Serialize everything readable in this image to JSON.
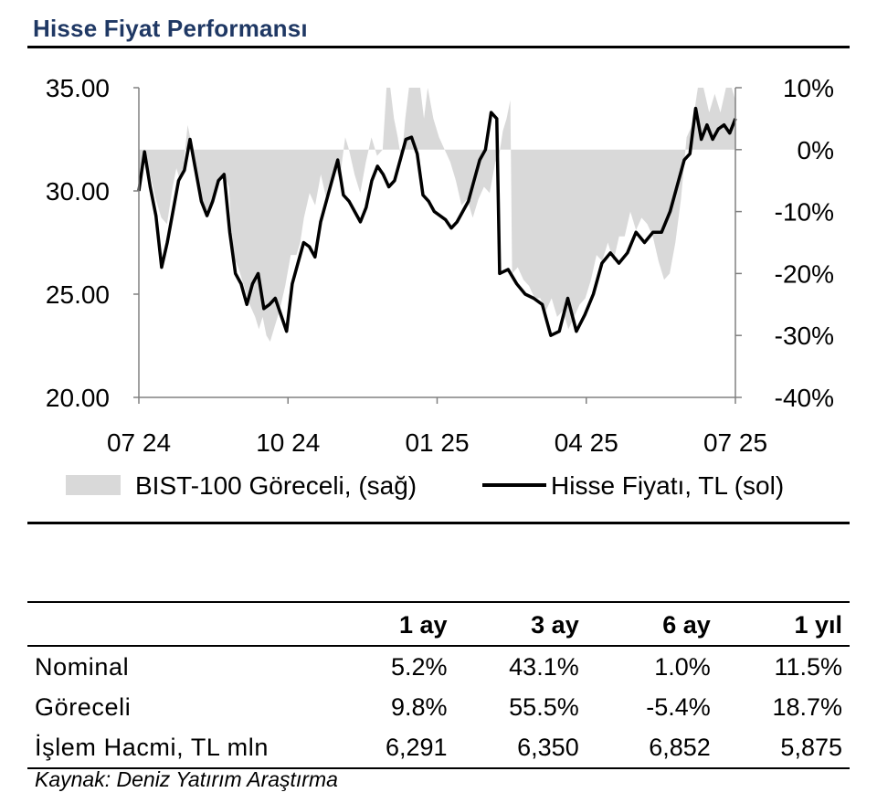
{
  "header": {
    "title": "Hisse Fiyat Performansı"
  },
  "chart_data": {
    "type": "line",
    "title": "Hisse Fiyat Performansı",
    "x_ticks": [
      "07 24",
      "10 24",
      "01 25",
      "04 25",
      "07 25"
    ],
    "y_left": {
      "ticks": [
        "35.00",
        "30.00",
        "25.00",
        "20.00"
      ],
      "range": [
        20,
        35
      ]
    },
    "y_right": {
      "ticks": [
        "10%",
        "0%",
        "-10%",
        "-20%",
        "-30%",
        "-40%"
      ],
      "range": [
        -40,
        10
      ]
    },
    "grid": false,
    "legend_position": "bottom",
    "series": [
      {
        "name": "BIST-100 Göreceli, (sağ)",
        "type": "area",
        "axis": "right",
        "color": "#d9d9d9",
        "points": [
          [
            0,
            -5
          ],
          [
            3,
            -1
          ],
          [
            6,
            -4
          ],
          [
            9,
            -8
          ],
          [
            12,
            -11
          ],
          [
            15,
            -12
          ],
          [
            18,
            -6
          ],
          [
            20,
            -3
          ],
          [
            22,
            -5
          ],
          [
            24,
            -2
          ],
          [
            26,
            4
          ],
          [
            28,
            1
          ],
          [
            30,
            -4
          ],
          [
            33,
            -8
          ],
          [
            36,
            -10
          ],
          [
            39,
            -8
          ],
          [
            42,
            -6
          ],
          [
            45,
            -4
          ],
          [
            48,
            -6
          ],
          [
            50,
            -17
          ],
          [
            53,
            -19
          ],
          [
            56,
            -22
          ],
          [
            59,
            -25
          ],
          [
            62,
            -27
          ],
          [
            64,
            -29
          ],
          [
            66,
            -27
          ],
          [
            68,
            -30
          ],
          [
            70,
            -31
          ],
          [
            72,
            -29
          ],
          [
            75,
            -26
          ],
          [
            78,
            -22
          ],
          [
            81,
            -17
          ],
          [
            84,
            -17
          ],
          [
            86,
            -15
          ],
          [
            88,
            -11
          ],
          [
            91,
            -7
          ],
          [
            94,
            -9
          ],
          [
            97,
            -4
          ],
          [
            100,
            -8
          ],
          [
            103,
            -5
          ],
          [
            105,
            -3
          ],
          [
            107,
            -5
          ],
          [
            110,
            2
          ],
          [
            112,
            0
          ],
          [
            115,
            -4
          ],
          [
            118,
            -7
          ],
          [
            121,
            -2
          ],
          [
            124,
            2
          ],
          [
            127,
            -1
          ],
          [
            130,
            0
          ],
          [
            132,
            10
          ],
          [
            134,
            10
          ],
          [
            136,
            5
          ],
          [
            138,
            2
          ],
          [
            140,
            -2
          ],
          [
            142,
            5
          ],
          [
            144,
            10
          ],
          [
            147,
            10
          ],
          [
            150,
            10
          ],
          [
            152,
            5
          ],
          [
            154,
            10
          ],
          [
            157,
            5
          ],
          [
            160,
            2
          ],
          [
            163,
            0
          ],
          [
            166,
            -2
          ],
          [
            169,
            -5
          ],
          [
            172,
            -9
          ],
          [
            175,
            -8
          ],
          [
            178,
            -11
          ],
          [
            181,
            -8
          ],
          [
            184,
            -6
          ],
          [
            187,
            -7
          ],
          [
            190,
            -2
          ],
          [
            192,
            -1
          ],
          [
            194,
            3
          ],
          [
            196,
            5
          ],
          [
            198,
            8
          ],
          [
            199,
            -20
          ],
          [
            202,
            -19
          ],
          [
            205,
            -21
          ],
          [
            208,
            -22
          ],
          [
            211,
            -24
          ],
          [
            214,
            -24
          ],
          [
            217,
            -26
          ],
          [
            220,
            -24
          ],
          [
            223,
            -27
          ],
          [
            226,
            -26
          ],
          [
            229,
            -29
          ],
          [
            232,
            -27
          ],
          [
            235,
            -25
          ],
          [
            238,
            -24
          ],
          [
            241,
            -21
          ],
          [
            244,
            -17
          ],
          [
            247,
            -18
          ],
          [
            250,
            -15
          ],
          [
            253,
            -18
          ],
          [
            256,
            -14
          ],
          [
            259,
            -14
          ],
          [
            262,
            -10
          ],
          [
            265,
            -13
          ],
          [
            268,
            -11
          ],
          [
            271,
            -12
          ],
          [
            274,
            -14
          ],
          [
            277,
            -18
          ],
          [
            280,
            -21
          ],
          [
            283,
            -20
          ],
          [
            286,
            -15
          ],
          [
            289,
            -8
          ],
          [
            292,
            2
          ],
          [
            295,
            4
          ],
          [
            298,
            10
          ],
          [
            301,
            10
          ],
          [
            304,
            6
          ],
          [
            307,
            9
          ],
          [
            310,
            6
          ],
          [
            313,
            10
          ],
          [
            316,
            10
          ],
          [
            318,
            8
          ]
        ]
      },
      {
        "name": "Hisse Fiyatı, TL (sol)",
        "type": "line",
        "axis": "left",
        "color": "#000000",
        "points": [
          [
            0,
            30.0
          ],
          [
            2,
            31.9
          ],
          [
            4,
            30.2
          ],
          [
            6,
            28.8
          ],
          [
            8,
            26.3
          ],
          [
            10,
            27.5
          ],
          [
            12,
            29.0
          ],
          [
            14,
            30.5
          ],
          [
            16,
            31.0
          ],
          [
            18,
            32.5
          ],
          [
            20,
            31.0
          ],
          [
            22,
            29.5
          ],
          [
            24,
            28.8
          ],
          [
            26,
            29.5
          ],
          [
            28,
            30.5
          ],
          [
            30,
            30.8
          ],
          [
            32,
            28.0
          ],
          [
            34,
            26.0
          ],
          [
            36,
            25.5
          ],
          [
            38,
            24.5
          ],
          [
            40,
            25.5
          ],
          [
            42,
            26.0
          ],
          [
            44,
            24.3
          ],
          [
            46,
            24.5
          ],
          [
            48,
            24.8
          ],
          [
            50,
            24.0
          ],
          [
            52,
            23.2
          ],
          [
            54,
            25.5
          ],
          [
            56,
            26.5
          ],
          [
            58,
            27.5
          ],
          [
            60,
            27.3
          ],
          [
            62,
            26.8
          ],
          [
            64,
            28.5
          ],
          [
            66,
            29.5
          ],
          [
            68,
            30.5
          ],
          [
            70,
            31.5
          ],
          [
            72,
            29.8
          ],
          [
            74,
            29.5
          ],
          [
            76,
            29.0
          ],
          [
            78,
            28.5
          ],
          [
            80,
            29.2
          ],
          [
            82,
            30.5
          ],
          [
            84,
            31.2
          ],
          [
            86,
            30.8
          ],
          [
            88,
            30.2
          ],
          [
            90,
            30.5
          ],
          [
            92,
            31.5
          ],
          [
            94,
            32.5
          ],
          [
            96,
            32.6
          ],
          [
            98,
            31.8
          ],
          [
            100,
            29.8
          ],
          [
            102,
            29.5
          ],
          [
            104,
            29.0
          ],
          [
            106,
            28.8
          ],
          [
            108,
            28.6
          ],
          [
            110,
            28.2
          ],
          [
            112,
            28.5
          ],
          [
            114,
            29.0
          ],
          [
            116,
            29.5
          ],
          [
            118,
            30.5
          ],
          [
            120,
            31.5
          ],
          [
            122,
            32.0
          ],
          [
            124,
            33.8
          ],
          [
            126,
            33.5
          ],
          [
            127,
            26.0
          ],
          [
            130,
            26.2
          ],
          [
            133,
            25.5
          ],
          [
            136,
            25.0
          ],
          [
            139,
            24.8
          ],
          [
            142,
            24.5
          ],
          [
            145,
            23.0
          ],
          [
            148,
            23.2
          ],
          [
            151,
            24.8
          ],
          [
            154,
            23.2
          ],
          [
            157,
            24.0
          ],
          [
            160,
            25.0
          ],
          [
            163,
            26.5
          ],
          [
            166,
            27.0
          ],
          [
            169,
            26.5
          ],
          [
            172,
            27.0
          ],
          [
            175,
            28.0
          ],
          [
            178,
            27.5
          ],
          [
            181,
            28.0
          ],
          [
            184,
            28.0
          ],
          [
            187,
            29.0
          ],
          [
            190,
            30.5
          ],
          [
            192,
            31.5
          ],
          [
            194,
            31.8
          ],
          [
            196,
            34.0
          ],
          [
            198,
            32.5
          ],
          [
            200,
            33.2
          ],
          [
            202,
            32.5
          ],
          [
            204,
            33.0
          ],
          [
            206,
            33.2
          ],
          [
            208,
            32.8
          ],
          [
            210,
            33.5
          ]
        ]
      }
    ]
  },
  "legend": {
    "area_label": "BIST-100 Göreceli, (sağ)",
    "line_label": "Hisse Fiyatı, TL (sol)"
  },
  "table": {
    "headers": [
      "",
      "1 ay",
      "3 ay",
      "6 ay",
      "1 yıl"
    ],
    "rows": [
      {
        "label": "Nominal",
        "values": [
          "5.2%",
          "43.1%",
          "1.0%",
          "11.5%"
        ]
      },
      {
        "label": "Göreceli",
        "values": [
          "9.8%",
          "55.5%",
          "-5.4%",
          "18.7%"
        ]
      },
      {
        "label": "İşlem Hacmi, TL mln",
        "values": [
          "6,291",
          "6,350",
          "6,852",
          "5,875"
        ]
      }
    ]
  },
  "source": "Kaynak: Deniz Yatırım Araştırma"
}
